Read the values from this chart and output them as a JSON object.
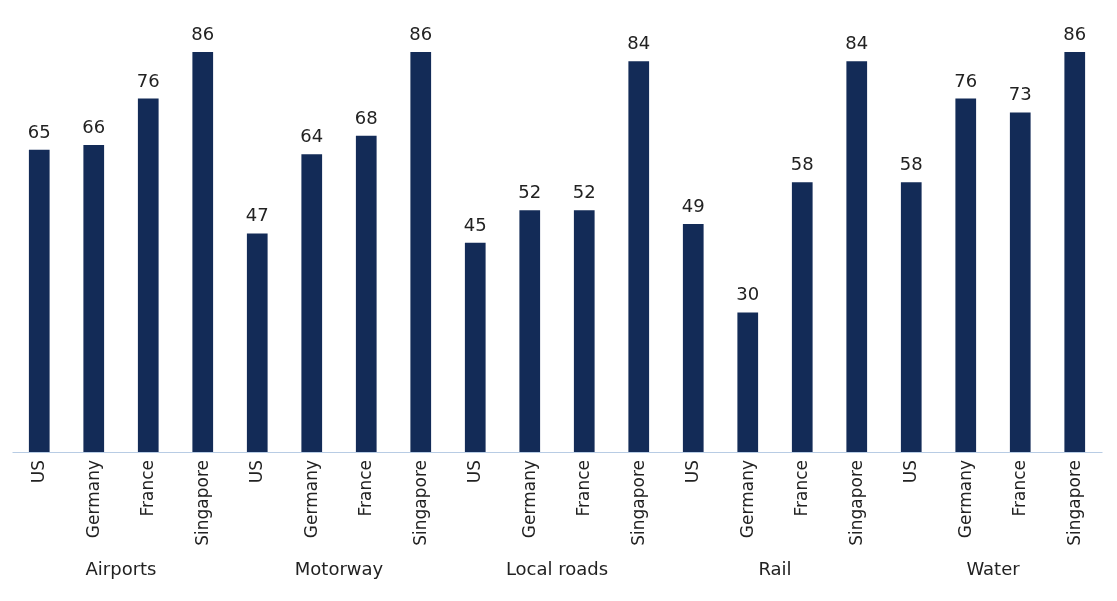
{
  "chart_data": {
    "type": "bar",
    "categories": [
      "Airports",
      "Motorway",
      "Local roads",
      "Rail",
      "Water"
    ],
    "series": [
      {
        "name": "US",
        "color": "#132b57",
        "values": [
          65,
          47,
          45,
          49,
          58
        ]
      },
      {
        "name": "Germany",
        "color": "#132b57",
        "values": [
          66,
          64,
          52,
          30,
          76
        ]
      },
      {
        "name": "France",
        "color": "#132b57",
        "values": [
          76,
          68,
          52,
          58,
          73
        ]
      },
      {
        "name": "Singapore",
        "color": "#132b57",
        "values": [
          86,
          86,
          84,
          84,
          86
        ]
      }
    ],
    "data_labels": true,
    "grid": false,
    "legend": false
  }
}
